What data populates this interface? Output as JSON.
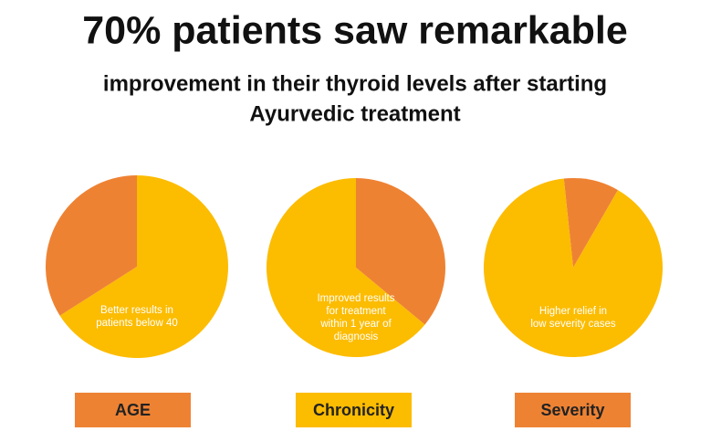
{
  "header": {
    "title": "70% patients saw remarkable",
    "subtitle": [
      "improvement in their thyroid levels after starting",
      "Ayurvedic treatment"
    ]
  },
  "chart_data": [
    {
      "type": "pie",
      "label": "AGE",
      "label_color": "#ee8233",
      "annotation": [
        "Better results in",
        "patients below 40"
      ],
      "values": [
        66,
        34
      ],
      "colors": [
        "#fcbc00",
        "#ee8233"
      ],
      "start_angle": 0
    },
    {
      "type": "pie",
      "label": "Chronicity",
      "label_color": "#fcbc00",
      "annotation": [
        "Improved results",
        "for treatment",
        "within 1 year of",
        "diagnosis"
      ],
      "values": [
        36,
        64
      ],
      "colors": [
        "#ee8233",
        "#fcbc00"
      ],
      "start_angle": 0
    },
    {
      "type": "pie",
      "label": "Severity",
      "label_color": "#ee8233",
      "annotation": [
        "Higher relief in",
        "low severity cases"
      ],
      "values": [
        10,
        90
      ],
      "colors": [
        "#ee8233",
        "#fcbc00"
      ],
      "start_angle": -6
    }
  ]
}
